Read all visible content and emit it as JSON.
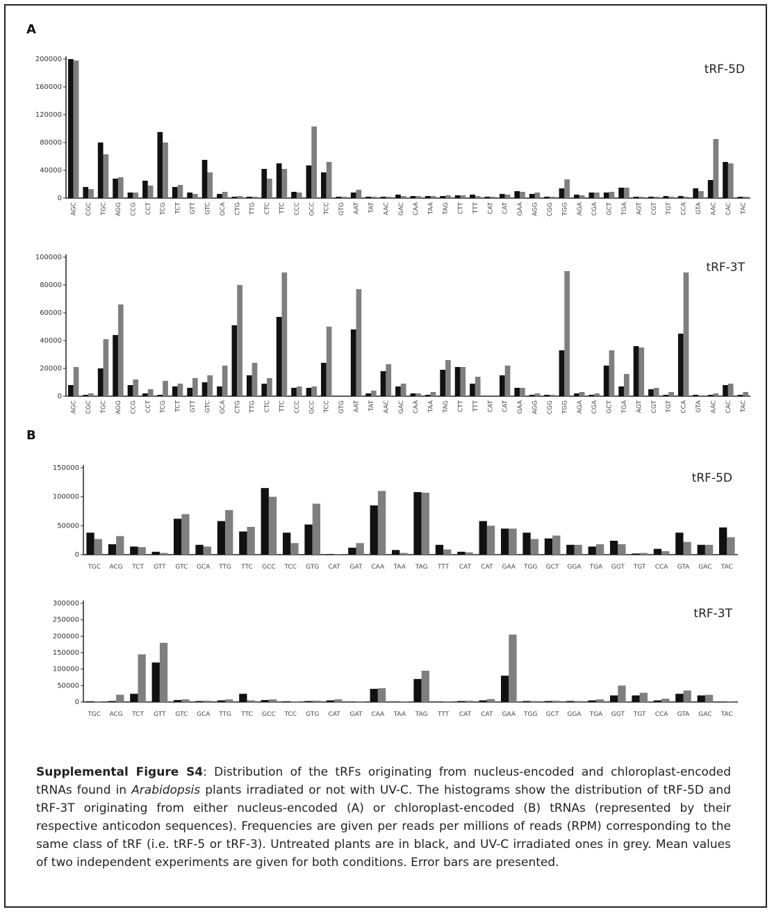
{
  "panels": [
    "A",
    "B"
  ],
  "chart_data": [
    {
      "type": "bar",
      "annotation": "tRF-5D",
      "categories": [
        "AGC",
        "CGC",
        "TGC",
        "AGG",
        "CCG",
        "CCT",
        "TCG",
        "TCT",
        "GTT",
        "GTC",
        "GCA",
        "CTG",
        "TTG",
        "CTC",
        "TTC",
        "CCC",
        "GCC",
        "TCC",
        "GTG",
        "AAT",
        "TAT",
        "AAC",
        "GAC",
        "CAA",
        "TAA",
        "TAG",
        "CTT",
        "TTT",
        "CAT",
        "CAT",
        "GAA",
        "AGG",
        "CGG",
        "TGG",
        "AGA",
        "CGA",
        "GCT",
        "TGA",
        "AGT",
        "CGT",
        "TGT",
        "CCA",
        "GTA",
        "AAC",
        "CAC",
        "TAC"
      ],
      "series": [
        {
          "color": "#111111",
          "values": [
            200000,
            16000,
            80000,
            28000,
            8000,
            25000,
            95000,
            16000,
            8000,
            55000,
            6000,
            2000,
            2000,
            42000,
            50000,
            9000,
            47000,
            37000,
            2000,
            8000,
            2000,
            2000,
            5000,
            3000,
            3000,
            3000,
            4000,
            5000,
            2000,
            6000,
            10000,
            6000,
            2000,
            14000,
            5000,
            8000,
            8000,
            15000,
            2000,
            2000,
            3000,
            3000,
            14000,
            26000,
            52000,
            2000
          ]
        },
        {
          "color": "#7f7f7f",
          "values": [
            198000,
            13000,
            63000,
            30000,
            8000,
            18000,
            80000,
            19000,
            6000,
            37000,
            9000,
            3000,
            2000,
            28000,
            42000,
            8000,
            103000,
            52000,
            2000,
            12000,
            2000,
            2000,
            3000,
            3000,
            3000,
            4000,
            4000,
            3000,
            2000,
            5000,
            9000,
            8000,
            2000,
            27000,
            4000,
            8000,
            9000,
            15000,
            2000,
            2000,
            2000,
            2000,
            10000,
            85000,
            50000,
            2000
          ]
        }
      ],
      "ylim": [
        0,
        200000
      ],
      "yticks": [
        0,
        40000,
        80000,
        120000,
        160000,
        200000
      ]
    },
    {
      "type": "bar",
      "annotation": "tRF-3T",
      "categories": [
        "AGC",
        "CGC",
        "TGC",
        "AGG",
        "CCG",
        "CCT",
        "TCG",
        "TCT",
        "GTT",
        "GTC",
        "GCA",
        "CTG",
        "TTG",
        "CTC",
        "TTC",
        "CCC",
        "GCC",
        "TCC",
        "GTG",
        "AAT",
        "TAT",
        "AAC",
        "GAC",
        "CAA",
        "TAA",
        "TAG",
        "CTT",
        "TTT",
        "CAT",
        "CAT",
        "GAA",
        "AGG",
        "CGG",
        "TGG",
        "AGA",
        "CGA",
        "GCT",
        "TGA",
        "AGT",
        "CGT",
        "TGT",
        "CCA",
        "GTA",
        "AAC",
        "CAC",
        "TAC"
      ],
      "series": [
        {
          "color": "#111111",
          "values": [
            8000,
            1000,
            20000,
            44000,
            8000,
            2000,
            1000,
            7000,
            6000,
            10000,
            7000,
            51000,
            15000,
            9000,
            57000,
            6000,
            6000,
            24000,
            0,
            48000,
            2000,
            18000,
            7000,
            2000,
            1000,
            19000,
            21000,
            9000,
            0,
            15000,
            6000,
            1000,
            1000,
            33000,
            2000,
            1000,
            22000,
            7000,
            36000,
            5000,
            1000,
            45000,
            1000,
            1000,
            8000,
            1000
          ]
        },
        {
          "color": "#7f7f7f",
          "values": [
            21000,
            2000,
            41000,
            66000,
            12000,
            5000,
            11000,
            9000,
            13000,
            15000,
            22000,
            80000,
            24000,
            13000,
            89000,
            7000,
            7000,
            50000,
            0,
            77000,
            4000,
            23000,
            9000,
            2000,
            3000,
            26000,
            21000,
            14000,
            0,
            22000,
            6000,
            2000,
            1000,
            90000,
            3000,
            2000,
            33000,
            16000,
            35000,
            6000,
            3000,
            89000,
            0,
            2000,
            9000,
            3000
          ]
        }
      ],
      "ylim": [
        0,
        100000
      ],
      "yticks": [
        0,
        20000,
        40000,
        60000,
        80000,
        100000
      ]
    },
    {
      "type": "bar",
      "annotation": "tRF-5D",
      "categories": [
        "TGC",
        "ACG",
        "TCT",
        "GTT",
        "GTC",
        "GCA",
        "TTG",
        "TTC",
        "GCC",
        "TCC",
        "GTG",
        "CAT",
        "GAT",
        "CAA",
        "TAA",
        "TAG",
        "TTT",
        "CAT",
        "CAT",
        "GAA",
        "TGG",
        "GCT",
        "GGA",
        "TGA",
        "GGT",
        "TGT",
        "CCA",
        "GTA",
        "GAC",
        "TAC"
      ],
      "series": [
        {
          "color": "#111111",
          "values": [
            38000,
            18000,
            14000,
            5000,
            62000,
            17000,
            58000,
            40000,
            115000,
            38000,
            52000,
            1000,
            12000,
            85000,
            8000,
            108000,
            17000,
            5000,
            58000,
            45000,
            38000,
            28000,
            17000,
            14000,
            24000,
            2000,
            10000,
            38000,
            17000,
            47000
          ]
        },
        {
          "color": "#7f7f7f",
          "values": [
            27000,
            32000,
            13000,
            3000,
            70000,
            14000,
            77000,
            48000,
            100000,
            20000,
            88000,
            1000,
            20000,
            110000,
            3000,
            107000,
            9000,
            4000,
            50000,
            45000,
            27000,
            33000,
            17000,
            18000,
            18000,
            3000,
            6000,
            22000,
            17000,
            30000
          ]
        }
      ],
      "ylim": [
        0,
        150000
      ],
      "yticks": [
        0,
        50000,
        100000,
        150000
      ]
    },
    {
      "type": "bar",
      "annotation": "tRF-3T",
      "categories": [
        "TGC",
        "ACG",
        "TCT",
        "GTT",
        "GTC",
        "GCA",
        "TTG",
        "TTC",
        "GCC",
        "TCC",
        "GTG",
        "CAT",
        "GAT",
        "CAA",
        "TAA",
        "TAG",
        "TTT",
        "CAT",
        "CAT",
        "GAA",
        "TGG",
        "GCT",
        "GGA",
        "TGA",
        "GGT",
        "TGT",
        "CCA",
        "GTA",
        "GAC",
        "TAC"
      ],
      "series": [
        {
          "color": "#111111",
          "values": [
            2000,
            3000,
            25000,
            120000,
            6000,
            3000,
            5000,
            25000,
            6000,
            2000,
            3000,
            5000,
            1000,
            40000,
            1000,
            70000,
            1000,
            3000,
            5000,
            80000,
            3000,
            3000,
            3000,
            5000,
            20000,
            20000,
            5000,
            25000,
            20000,
            1000
          ]
        },
        {
          "color": "#7f7f7f",
          "values": [
            1000,
            22000,
            145000,
            180000,
            8000,
            4000,
            8000,
            5000,
            8000,
            1000,
            4000,
            8000,
            1000,
            42000,
            1000,
            95000,
            1000,
            4000,
            9000,
            205000,
            3000,
            4000,
            3000,
            8000,
            50000,
            28000,
            10000,
            35000,
            22000,
            1000
          ]
        }
      ],
      "ylim": [
        0,
        300000
      ],
      "yticks": [
        0,
        50000,
        100000,
        150000,
        200000,
        250000,
        300000
      ]
    }
  ],
  "caption": {
    "label": "Supplemental Figure S4",
    "text_1": ": Distribution of the tRFs originating from nucleus-encoded and chloroplast-encoded tRNAs found in ",
    "italic": "Arabidopsis",
    "text_2": " plants irradiated or not with UV-C. The histograms show the distribution of tRF-5D and tRF-3T originating from either nucleus-encoded (A) or chloroplast-encoded (B) tRNAs (represented by their respective anticodon sequences). Frequencies are given per reads per millions of reads (RPM) corresponding to the same class of tRF (i.e. tRF-5 or tRF-3). Untreated plants are in black, and UV-C irradiated ones in grey. Mean values of two independent experiments are given for both conditions. Error bars are presented."
  }
}
